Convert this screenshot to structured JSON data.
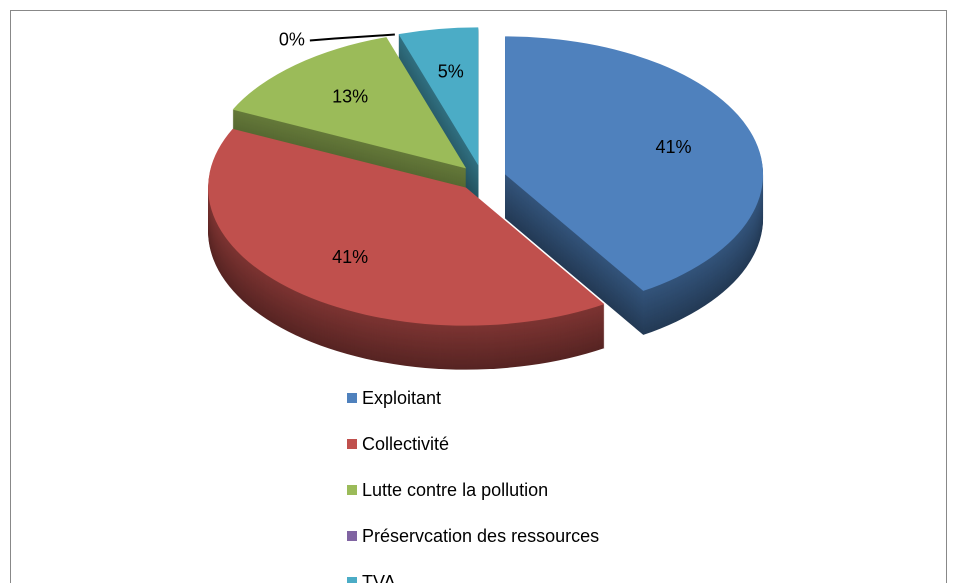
{
  "chart_data": {
    "type": "pie",
    "categories": [
      "Exploitant",
      "Collectivité",
      "Lutte contre la pollution",
      "Préservcation des ressources",
      "TVA"
    ],
    "values": [
      41,
      41,
      13,
      0,
      5
    ],
    "value_labels": [
      "41%",
      "41%",
      "13%",
      "0%",
      "5%"
    ],
    "colors": [
      "#4f81bd",
      "#c0504d",
      "#9bbb59",
      "#8064a2",
      "#4bacc6"
    ],
    "legend": "bottom"
  }
}
